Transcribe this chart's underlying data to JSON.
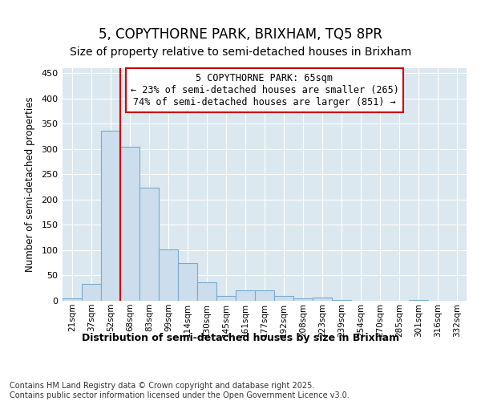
{
  "title_line1": "5, COPYTHORNE PARK, BRIXHAM, TQ5 8PR",
  "title_line2": "Size of property relative to semi-detached houses in Brixham",
  "xlabel": "Distribution of semi-detached houses by size in Brixham",
  "ylabel": "Number of semi-detached properties",
  "bar_color": "#ccdded",
  "bar_edge_color": "#7aaaca",
  "vline_color": "#cc0000",
  "annotation_text": "5 COPYTHORNE PARK: 65sqm\n← 23% of semi-detached houses are smaller (265)\n74% of semi-detached houses are larger (851) →",
  "annotation_box_edge_color": "#cc0000",
  "categories": [
    "21sqm",
    "37sqm",
    "52sqm",
    "68sqm",
    "83sqm",
    "99sqm",
    "114sqm",
    "130sqm",
    "145sqm",
    "161sqm",
    "177sqm",
    "192sqm",
    "208sqm",
    "223sqm",
    "239sqm",
    "254sqm",
    "270sqm",
    "285sqm",
    "301sqm",
    "316sqm",
    "332sqm"
  ],
  "values": [
    4,
    33,
    336,
    305,
    224,
    101,
    75,
    36,
    10,
    21,
    20,
    10,
    5,
    7,
    1,
    0,
    0,
    0,
    1,
    0,
    0
  ],
  "ylim": [
    0,
    460
  ],
  "yticks": [
    0,
    50,
    100,
    150,
    200,
    250,
    300,
    350,
    400,
    450
  ],
  "fig_background": "#ffffff",
  "plot_background": "#dce8f0",
  "grid_color": "#ffffff",
  "footer": "Contains HM Land Registry data © Crown copyright and database right 2025.\nContains public sector information licensed under the Open Government Licence v3.0.",
  "title_fontsize": 12,
  "subtitle_fontsize": 10,
  "footer_fontsize": 7
}
